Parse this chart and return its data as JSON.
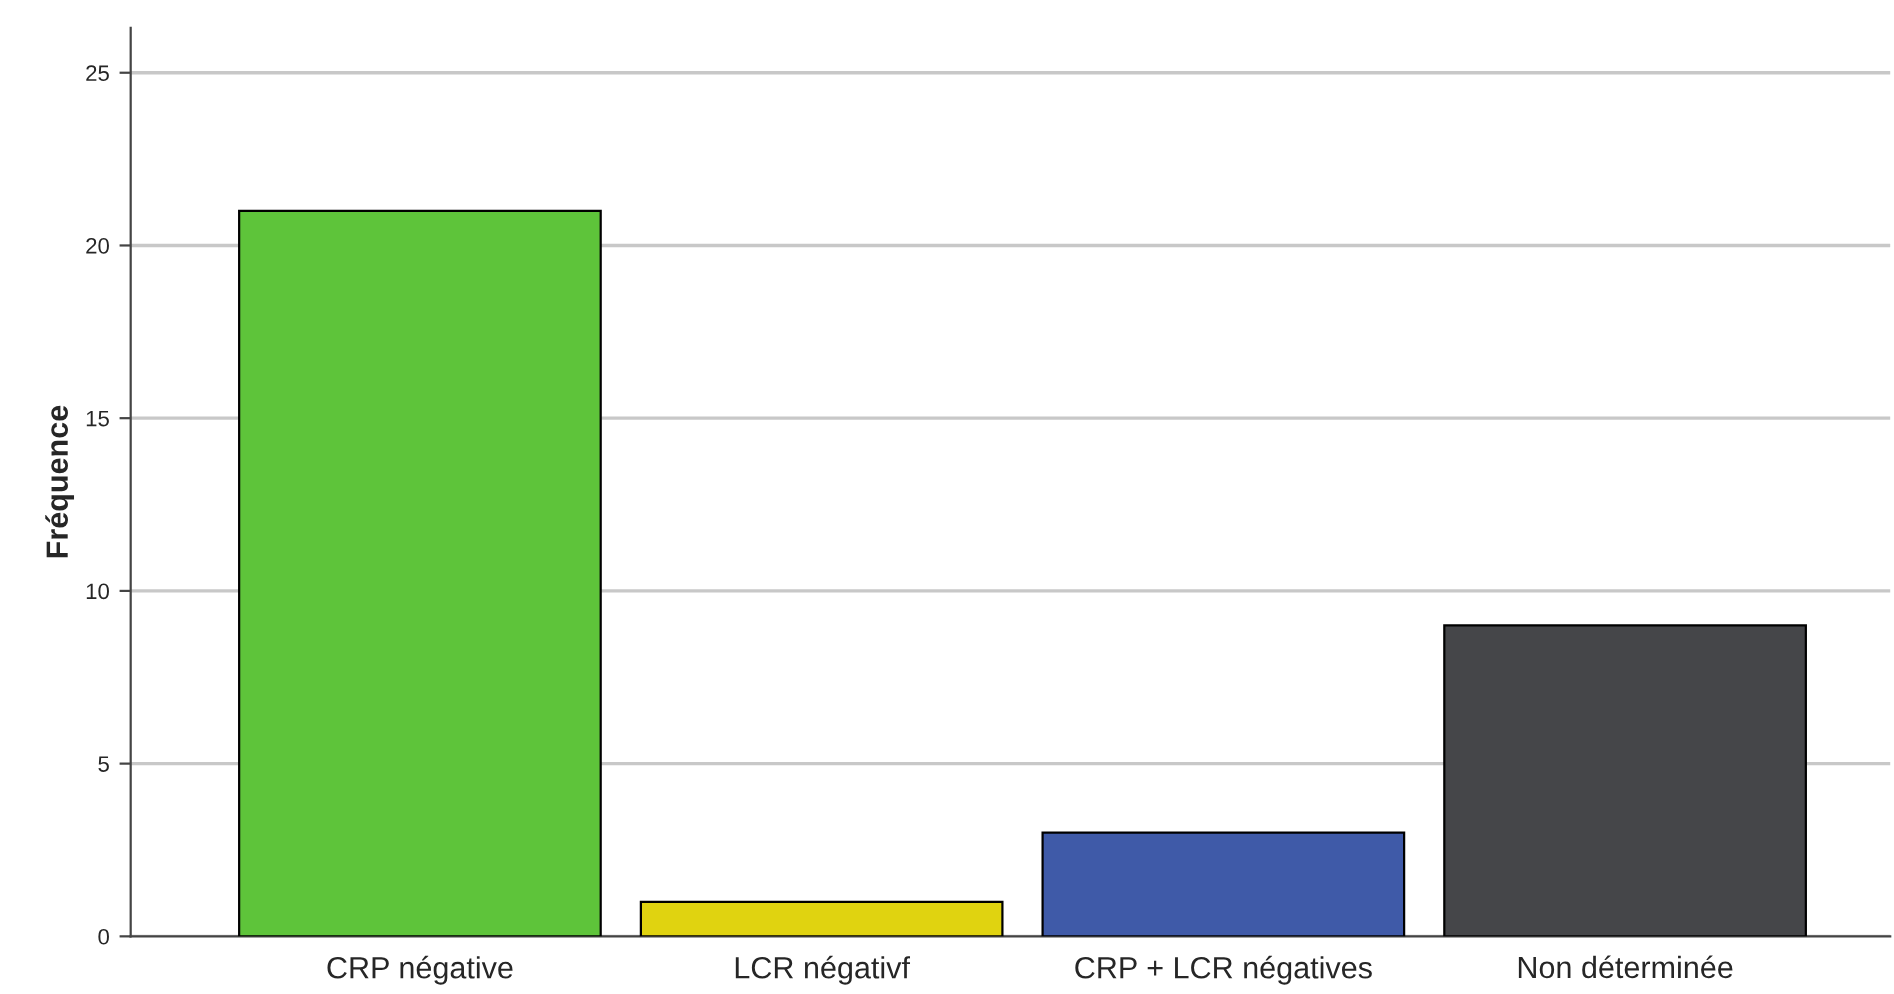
{
  "chart_data": {
    "type": "bar",
    "ylabel": "Fréquence",
    "categories": [
      "CRP négative",
      "LCR négativf",
      "CRP + LCR négatives",
      "Non déterminée"
    ],
    "values": [
      21,
      1,
      3,
      9
    ],
    "colors": [
      "#5ec43a",
      "#e0d310",
      "#3f5aa8",
      "#454649"
    ],
    "ylim": [
      0,
      26.3
    ],
    "yticks": [
      0,
      5,
      10,
      15,
      20,
      25
    ],
    "grid": "y",
    "legend": false
  }
}
